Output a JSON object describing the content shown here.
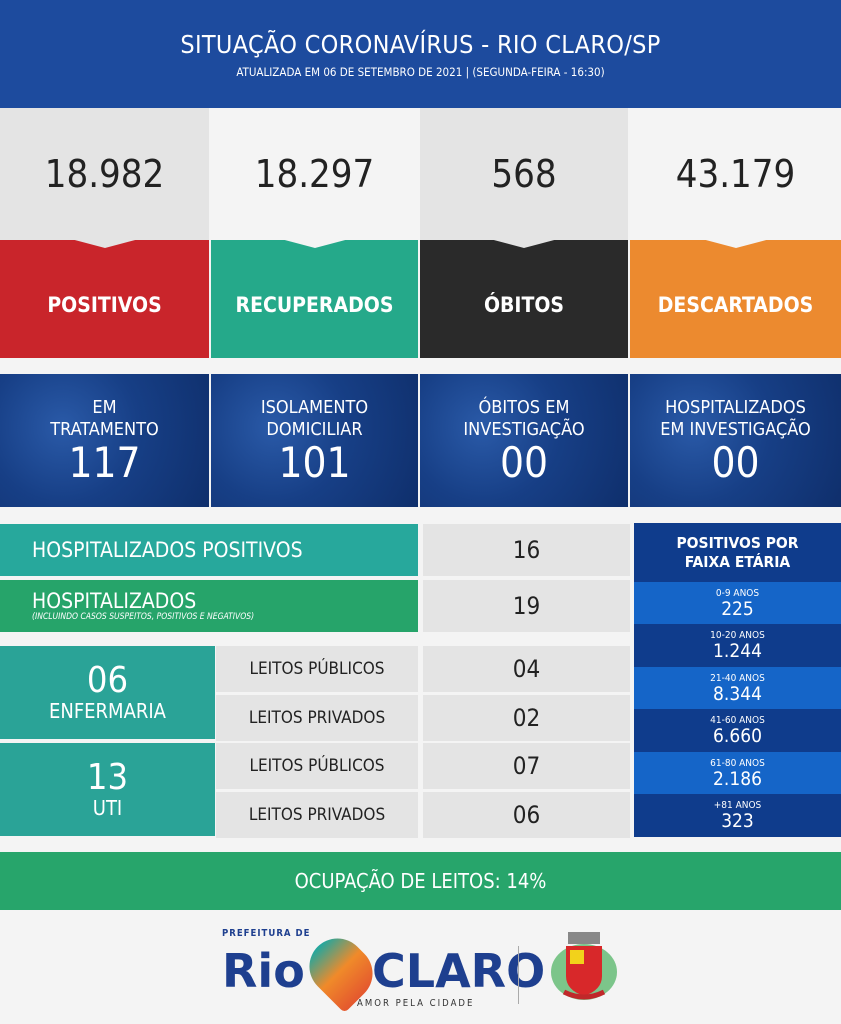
{
  "header": {
    "title": "SITUAÇÃO CORONAVÍRUS - RIO CLARO/SP",
    "subtitle": "ATUALIZADA EM 06 DE SETEMBRO DE 2021 | (SEGUNDA-FEIRA - 16:30)"
  },
  "summary": [
    {
      "value": "18.982",
      "label": "POSITIVOS",
      "color": "#c9252b"
    },
    {
      "value": "18.297",
      "label": "RECUPERADOS",
      "color": "#25a98a"
    },
    {
      "value": "568",
      "label": "ÓBITOS",
      "color": "#2a2a2a"
    },
    {
      "value": "43.179",
      "label": "DESCARTADOS",
      "color": "#ec8a2f"
    }
  ],
  "tiles": [
    {
      "label1": "EM",
      "label2": "TRATAMENTO",
      "value": "117"
    },
    {
      "label1": "ISOLAMENTO",
      "label2": "DOMICILIAR",
      "value": "101"
    },
    {
      "label1": "ÓBITOS EM",
      "label2": "INVESTIGAÇÃO",
      "value": "00"
    },
    {
      "label1": "HOSPITALIZADOS",
      "label2": "EM INVESTIGAÇÃO",
      "value": "00"
    }
  ],
  "hosp_pos": {
    "label": "HOSPITALIZADOS POSITIVOS",
    "value": "16"
  },
  "hosp": {
    "label": "HOSPITALIZADOS",
    "note": "(INCLUINDO CASOS SUSPEITOS, POSITIVOS E NEGATIVOS)",
    "value": "19"
  },
  "enfermaria": {
    "value": "06",
    "label": "ENFERMARIA",
    "rows": [
      {
        "label": "LEITOS PÚBLICOS",
        "value": "04"
      },
      {
        "label": "LEITOS PRIVADOS",
        "value": "02"
      }
    ]
  },
  "uti": {
    "value": "13",
    "label": "UTI",
    "rows": [
      {
        "label": "LEITOS PÚBLICOS",
        "value": "07"
      },
      {
        "label": "LEITOS PRIVADOS",
        "value": "06"
      }
    ]
  },
  "age": {
    "title1": "POSITIVOS POR",
    "title2": "FAIXA ETÁRIA",
    "rows": [
      {
        "range": "0-9 ANOS",
        "value": "225"
      },
      {
        "range": "10-20 ANOS",
        "value": "1.244"
      },
      {
        "range": "21-40 ANOS",
        "value": "8.344"
      },
      {
        "range": "41-60 ANOS",
        "value": "6.660"
      },
      {
        "range": "61-80 ANOS",
        "value": "2.186"
      },
      {
        "range": "+81 ANOS",
        "value": "323"
      }
    ]
  },
  "ocupacao": "OCUPAÇÃO DE LEITOS: 14%",
  "footer": {
    "logo_top": "PREFEITURA DE",
    "logo_left": "Rio",
    "logo_right": "CLARO",
    "logo_tag": "AMOR PELA CIDADE"
  }
}
